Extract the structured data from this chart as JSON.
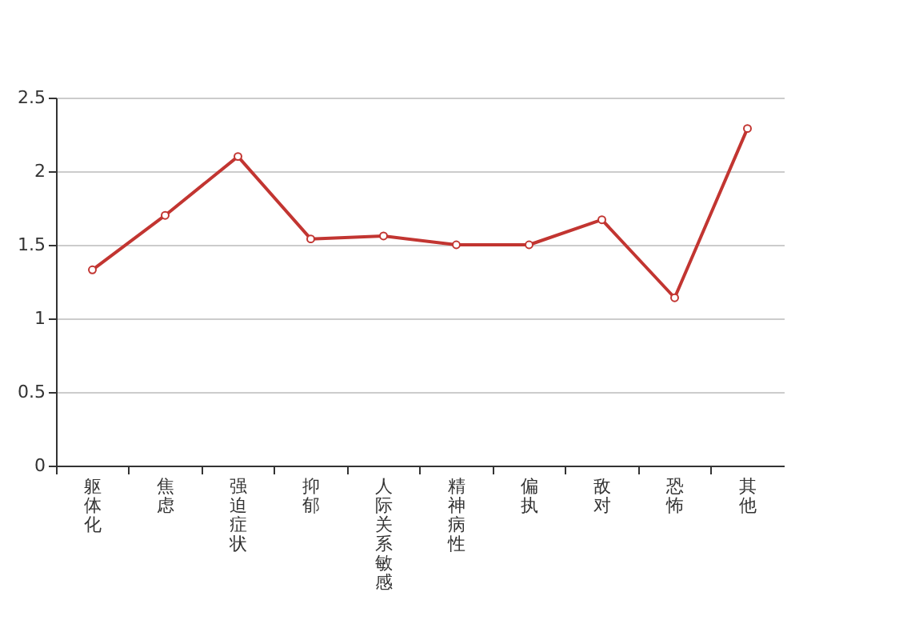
{
  "chart_data": {
    "type": "line",
    "categories": [
      "躯体化",
      "焦虑",
      "强迫症状",
      "抑郁",
      "人际关系敏感",
      "精神病性",
      "偏执",
      "敌对",
      "恐怖",
      "其他"
    ],
    "series": [
      {
        "color": "#c23531",
        "values": [
          1.33,
          1.7,
          2.1,
          1.54,
          1.56,
          1.5,
          1.5,
          1.67,
          1.14,
          2.29
        ]
      }
    ],
    "ylim": [
      0,
      2.5
    ],
    "yticks": [
      0,
      0.5,
      1,
      1.5,
      2,
      2.5
    ],
    "grid": "y",
    "marker": "circle",
    "line_style": "solid"
  }
}
